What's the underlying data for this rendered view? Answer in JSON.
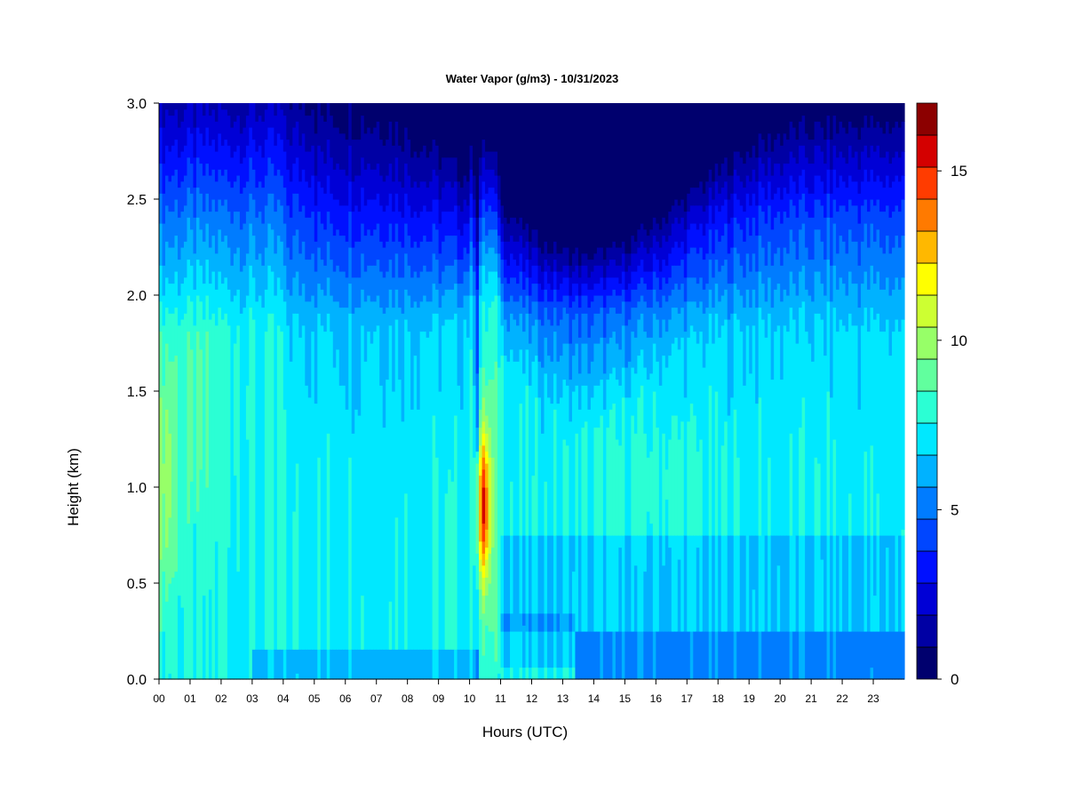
{
  "chart_data": {
    "type": "heatmap",
    "title": "Water Vapor (g/m3) - 10/31/2023",
    "xlabel": "Hours (UTC)",
    "ylabel": "Height (km)",
    "xlim": [
      0,
      24
    ],
    "ylim": [
      0,
      3
    ],
    "x_ticks": [
      "00",
      "01",
      "02",
      "03",
      "04",
      "05",
      "06",
      "07",
      "08",
      "09",
      "10",
      "11",
      "12",
      "13",
      "14",
      "15",
      "16",
      "17",
      "18",
      "19",
      "20",
      "21",
      "22",
      "23"
    ],
    "y_ticks": [
      "0.0",
      "0.5",
      "1.0",
      "1.5",
      "2.0",
      "2.5",
      "3.0"
    ],
    "colorbar": {
      "range": [
        0,
        17
      ],
      "levels": 17,
      "tick_values": [
        0,
        5,
        10,
        15
      ],
      "tick_labels": [
        "0",
        "5",
        "10",
        "15"
      ],
      "colors": [
        "#00006e",
        "#0000a4",
        "#0000d6",
        "#0010ff",
        "#0046ff",
        "#007cff",
        "#00b2ff",
        "#00e8ff",
        "#2bffd4",
        "#61ff9e",
        "#97ff68",
        "#cdff32",
        "#ffff00",
        "#ffb800",
        "#ff7a00",
        "#ff3c00",
        "#d40000",
        "#8c0000"
      ]
    },
    "grid": false,
    "legend_position": "right"
  }
}
